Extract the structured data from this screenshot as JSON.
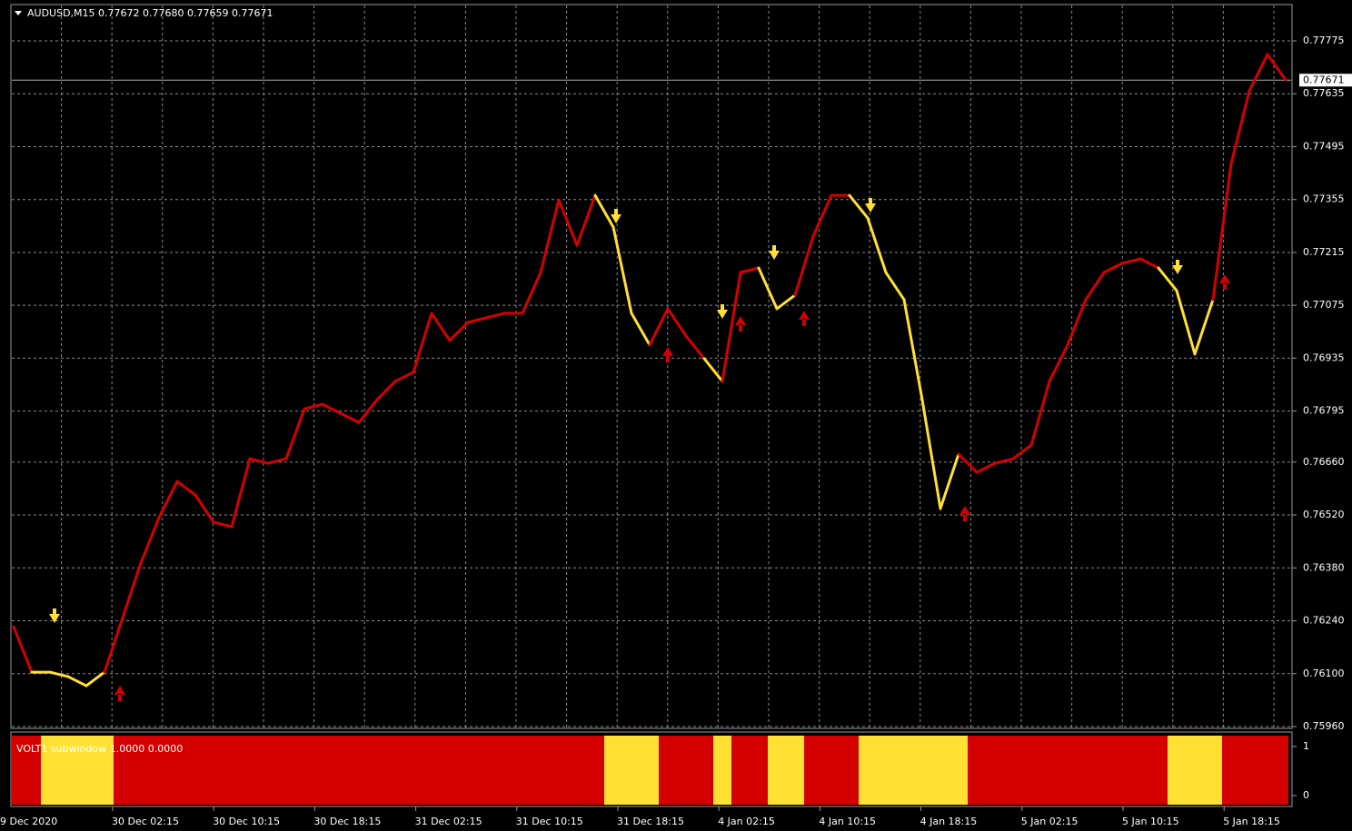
{
  "header": "AUDUSD,M15  0.77672 0.77680 0.77659 0.77671",
  "chart_data": {
    "type": "line",
    "ylim": [
      0.7596,
      0.77775
    ],
    "yticks": [
      0.77775,
      {
        "value": 0.77635,
        "label": "0.77635"
      },
      0.77495,
      0.77355,
      0.77215,
      0.77075,
      0.76935,
      0.76795,
      {
        "value": 0.7666,
        "label": "0.76660"
      },
      {
        "value": 0.7652,
        "label": "0.76520"
      },
      {
        "value": 0.7638,
        "label": "0.76380"
      },
      {
        "value": 0.7624,
        "label": "0.76240"
      },
      {
        "value": 0.761,
        "label": "0.76100"
      },
      {
        "value": 0.7596,
        "label": "0.75960"
      }
    ],
    "current_price": 0.77671,
    "time_labels": [
      "9 Dec 2020",
      "30 Dec 02:15",
      "30 Dec 10:15",
      "30 Dec 18:15",
      "31 Dec 02:15",
      "31 Dec 10:15",
      "31 Dec 18:15",
      "4 Jan 02:15",
      "4 Jan 10:15",
      "4 Jan 18:15",
      "5 Jan 02:15",
      "5 Jan 10:15",
      "5 Jan 18:15"
    ],
    "values": [
      0.76224,
      0.76104,
      0.76104,
      0.76092,
      0.76068,
      0.76104,
      0.76248,
      0.76393,
      0.76513,
      0.76609,
      0.76573,
      0.76501,
      0.76489,
      0.76669,
      0.76657,
      0.76669,
      0.76801,
      0.76813,
      0.76789,
      0.76765,
      0.76825,
      0.76874,
      0.76898,
      0.77054,
      0.76982,
      0.7703,
      0.77042,
      0.77054,
      0.77054,
      0.77162,
      0.77354,
      0.77234,
      0.77366,
      0.77282,
      0.77054,
      0.7697,
      0.77066,
      0.76994,
      0.76934,
      0.76874,
      0.77162,
      0.77174,
      0.77066,
      0.77102,
      0.77258,
      0.77366,
      0.77366,
      0.77306,
      0.77162,
      0.7709,
      0.76825,
      0.76537,
      0.76681,
      0.76633,
      0.76657,
      0.76669,
      0.76705,
      0.76874,
      0.7697,
      0.7709,
      0.77162,
      0.77186,
      0.77198,
      0.77174,
      0.77114,
      0.76946,
      0.7709,
      0.7745,
      0.77643,
      0.77739,
      0.77672
    ],
    "state": [
      1,
      1,
      0,
      0,
      0,
      0,
      1,
      1,
      1,
      1,
      1,
      1,
      1,
      1,
      1,
      1,
      1,
      1,
      1,
      1,
      1,
      1,
      1,
      1,
      1,
      1,
      1,
      1,
      1,
      1,
      1,
      1,
      1,
      0,
      0,
      0,
      1,
      1,
      1,
      0,
      1,
      1,
      0,
      0,
      1,
      1,
      1,
      0,
      0,
      0,
      0,
      0,
      0,
      1,
      1,
      1,
      1,
      1,
      1,
      1,
      1,
      1,
      1,
      1,
      0,
      0,
      0,
      1,
      1,
      1,
      1
    ],
    "colors": {
      "1": "#d40000",
      "0": "#ffe033"
    },
    "subwindow": {
      "label": "VOLT1 subwindow 1.0000 0.0000",
      "yticks": [
        1,
        0
      ]
    }
  }
}
